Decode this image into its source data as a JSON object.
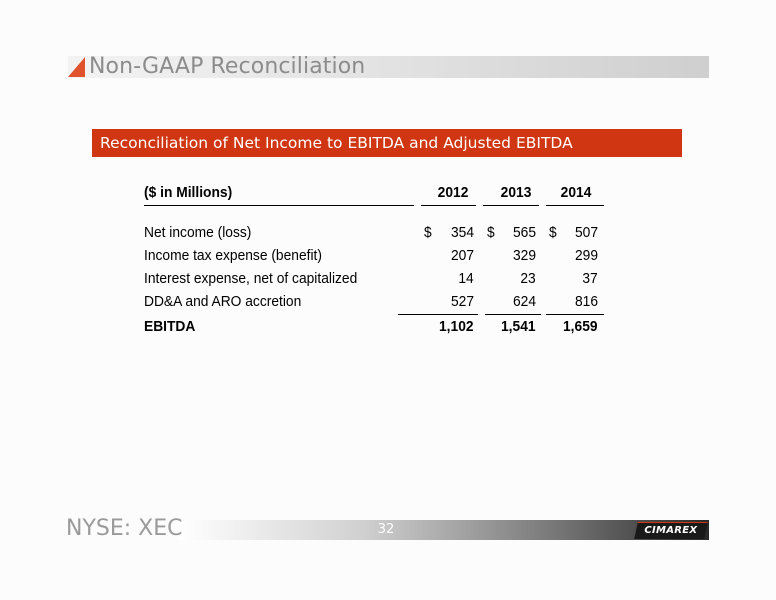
{
  "page": {
    "title": "Non-GAAP Reconciliation",
    "section_title": "Reconciliation of Net Income to EBITDA and Adjusted EBITDA",
    "accent_color": "#cf3611"
  },
  "table": {
    "header": {
      "label": "($ in Millions)",
      "years": [
        "2012",
        "2013",
        "2014"
      ]
    },
    "rows": [
      {
        "label": "Net income (loss)",
        "values": [
          "354",
          "565",
          "507"
        ],
        "currency": "$"
      },
      {
        "label": "Income tax expense (benefit)",
        "values": [
          "207",
          "329",
          "299"
        ]
      },
      {
        "label": "Interest expense, net of capitalized",
        "values": [
          "14",
          "23",
          "37"
        ]
      },
      {
        "label": "DD&A and ARO accretion",
        "values": [
          "527",
          "624",
          "816"
        ]
      },
      {
        "label": "EBITDA",
        "values": [
          "1,102",
          "1,541",
          "1,659"
        ],
        "bold": true
      }
    ]
  },
  "footer": {
    "ticker": "NYSE: XEC",
    "page_number": "32",
    "logo_text": "CIMAREX"
  }
}
